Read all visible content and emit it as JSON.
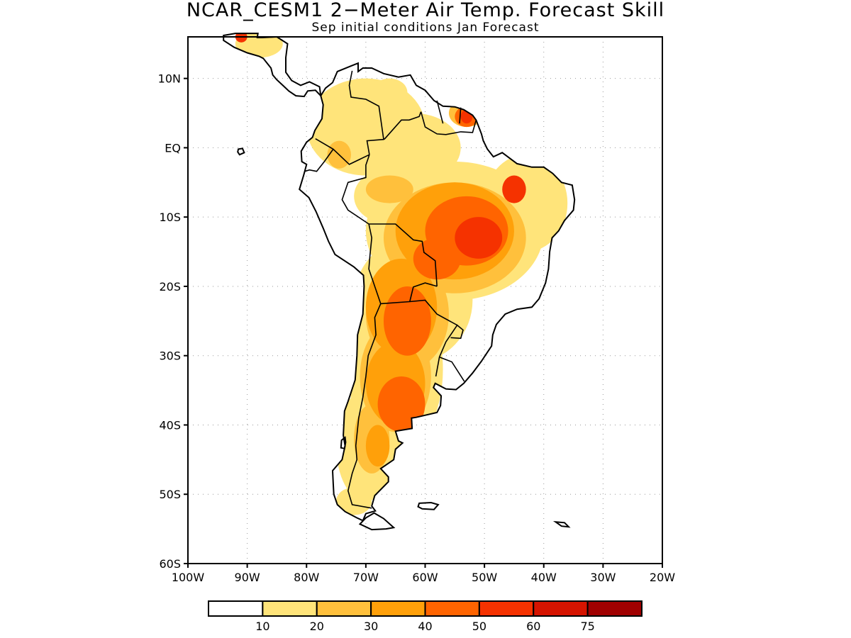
{
  "title": "NCAR_CESM1 2−Meter Air Temp. Forecast Skill",
  "subtitle": "Sep initial conditions  Jan Forecast",
  "map": {
    "region": "South America",
    "lon_range": [
      -100,
      -20
    ],
    "lat_range": [
      -60,
      16
    ],
    "grid_lines": "dotted",
    "lat_ticks": [
      {
        "value": 10,
        "label": "10N"
      },
      {
        "value": 0,
        "label": "EQ"
      },
      {
        "value": -10,
        "label": "10S"
      },
      {
        "value": -20,
        "label": "20S"
      },
      {
        "value": -30,
        "label": "30S"
      },
      {
        "value": -40,
        "label": "40S"
      },
      {
        "value": -50,
        "label": "50S"
      },
      {
        "value": -60,
        "label": "60S"
      }
    ],
    "lon_ticks": [
      {
        "value": -100,
        "label": "100W"
      },
      {
        "value": -90,
        "label": "90W"
      },
      {
        "value": -80,
        "label": "80W"
      },
      {
        "value": -70,
        "label": "70W"
      },
      {
        "value": -60,
        "label": "60W"
      },
      {
        "value": -50,
        "label": "50W"
      },
      {
        "value": -40,
        "label": "40W"
      },
      {
        "value": -30,
        "label": "30W"
      },
      {
        "value": -20,
        "label": "20W"
      }
    ]
  },
  "colorbar": {
    "colors": [
      "#ffffff",
      "#ffe47a",
      "#ffc03c",
      "#ffa00a",
      "#ff6400",
      "#f53200",
      "#d61400",
      "#a00000"
    ],
    "labels": [
      "10",
      "20",
      "30",
      "40",
      "50",
      "60",
      "75"
    ]
  }
}
